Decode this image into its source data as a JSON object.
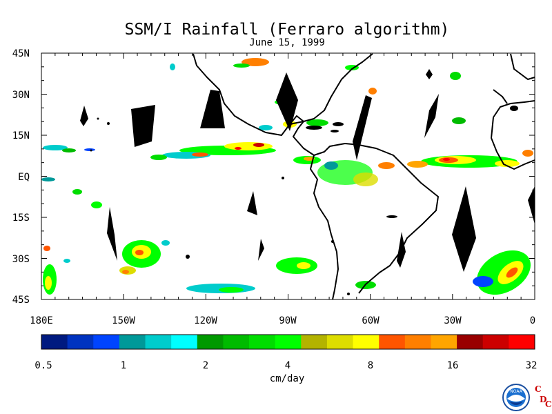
{
  "title": "SSM/I Rainfall (Ferraro algorithm)",
  "subtitle": "June 15, 1999",
  "map": {
    "lat_labels": [
      "45N",
      "30N",
      "15N",
      "EQ",
      "15S",
      "30S",
      "45S"
    ],
    "lon_labels": [
      "180E",
      "150W",
      "120W",
      "90W",
      "60W",
      "30W",
      "0"
    ]
  },
  "colorbar": {
    "unit_label": "cm/day",
    "tick_labels": [
      "0.5",
      "1",
      "2",
      "4",
      "8",
      "16",
      "32"
    ],
    "colors": [
      "#001a80",
      "#0033c0",
      "#0044ff",
      "#009999",
      "#00cccc",
      "#00ffff",
      "#009900",
      "#00bb00",
      "#00dd00",
      "#00ff00",
      "#b3b300",
      "#dddd00",
      "#ffff00",
      "#ff5500",
      "#ff7f00",
      "#ffa500",
      "#990000",
      "#cc0000",
      "#ff0000"
    ]
  },
  "logo": {
    "noaa_text": "NOAA",
    "cdc_letters": [
      "C",
      "D",
      "C"
    ]
  }
}
